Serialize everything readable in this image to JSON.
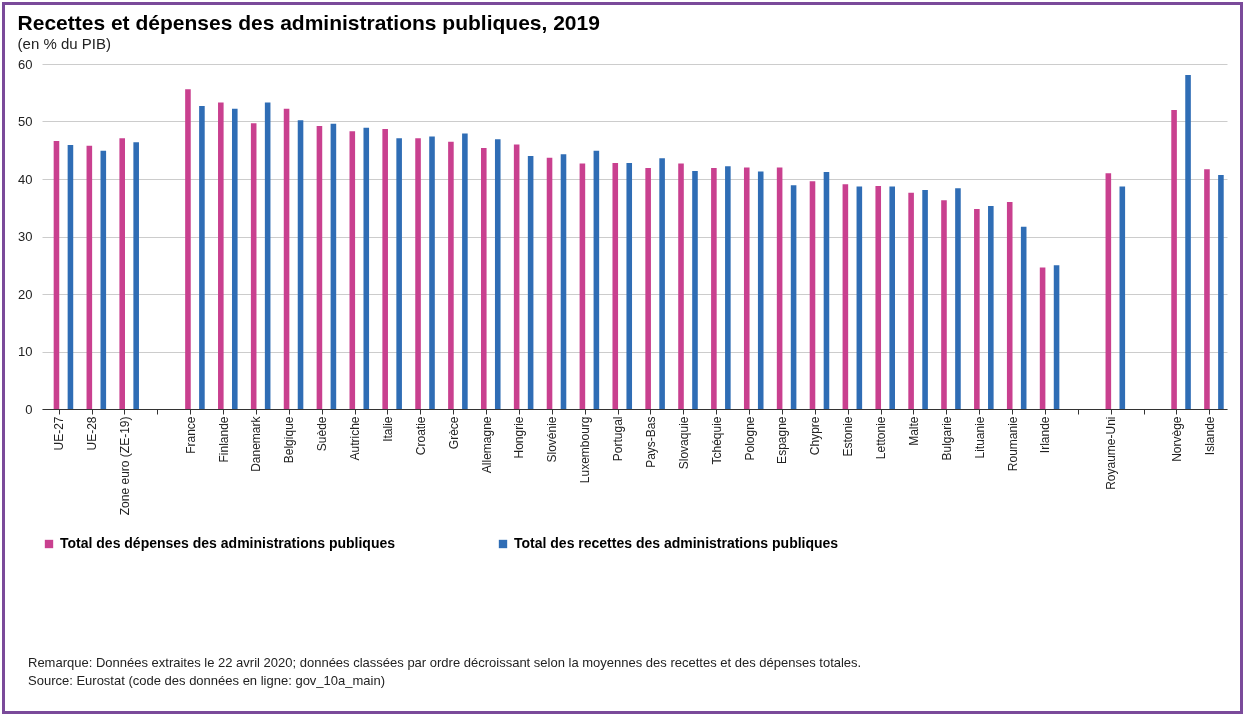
{
  "chart_data": {
    "type": "bar",
    "title": "Recettes et dépenses des administrations publiques, 2019",
    "subtitle": "(en % du PIB)",
    "categories": [
      "UE-27",
      "UE-28",
      "Zone euro (ZE-19)",
      null,
      "France",
      "Finlande",
      "Danemark",
      "Belgique",
      "Suède",
      "Autriche",
      "Italie",
      "Croatie",
      "Grèce",
      "Allemagne",
      "Hongrie",
      "Slovénie",
      "Luxembourg",
      "Portugal",
      "Pays-Bas",
      "Slovaquie",
      "Tchéquie",
      "Pologne",
      "Espagne",
      "Chypre",
      "Estonie",
      "Lettonie",
      "Malte",
      "Bulgarie",
      "Lituanie",
      "Roumanie",
      "Irlande",
      null,
      "Royaume-Uni",
      null,
      "Norvège",
      "Islande"
    ],
    "series": [
      {
        "name": "Total des dépenses des administrations publiques",
        "color": "#c9408f",
        "values": [
          46.6,
          45.8,
          47.1,
          null,
          55.6,
          53.3,
          49.7,
          52.2,
          49.2,
          48.3,
          48.7,
          47.1,
          46.5,
          45.4,
          46.0,
          43.7,
          42.7,
          42.8,
          41.9,
          42.7,
          41.9,
          42.0,
          42.0,
          39.6,
          39.1,
          38.8,
          37.6,
          36.3,
          34.8,
          36.0,
          24.6,
          null,
          41.0,
          null,
          52.0,
          41.7
        ]
      },
      {
        "name": "Total des recettes des administrations publiques",
        "color": "#2f6db5",
        "values": [
          45.9,
          44.9,
          46.4,
          null,
          52.7,
          52.2,
          53.3,
          50.2,
          49.6,
          48.9,
          47.1,
          47.4,
          47.9,
          46.9,
          44.0,
          44.3,
          44.9,
          42.8,
          43.6,
          41.4,
          42.2,
          41.3,
          38.9,
          41.2,
          38.7,
          38.7,
          38.1,
          38.4,
          35.3,
          31.7,
          25.0,
          null,
          38.7,
          null,
          58.1,
          40.7
        ]
      }
    ],
    "ylim": [
      0,
      60
    ],
    "yticks": [
      0,
      10,
      20,
      30,
      40,
      50,
      60
    ],
    "grid": "y",
    "legend": "bottom",
    "annotations": [
      "Remarque: Données extraites le 22 avril 2020; données classées par ordre décroissant selon la moyennes des recettes et des dépenses totales.",
      "Source: Eurostat (code des données en ligne: gov_10a_main)"
    ]
  }
}
